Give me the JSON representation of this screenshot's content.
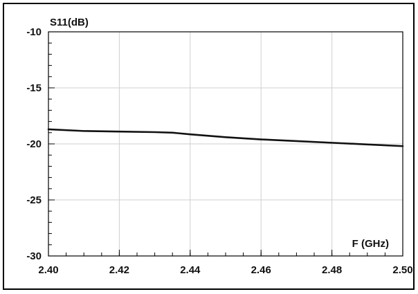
{
  "chart_data": {
    "type": "line",
    "title": "",
    "xlabel": "F (GHz)",
    "ylabel": "S11(dB)",
    "xlim": [
      2.4,
      2.5
    ],
    "ylim": [
      -30,
      -10
    ],
    "xticks": [
      2.4,
      2.42,
      2.44,
      2.46,
      2.48,
      2.5
    ],
    "xtick_labels": [
      "2.40",
      "2.42",
      "2.44",
      "2.46",
      "2.48",
      "2.50"
    ],
    "yticks": [
      -10,
      -15,
      -20,
      -25,
      -30
    ],
    "ytick_labels": [
      "-10",
      "-15",
      "-20",
      "-25",
      "-30"
    ],
    "x_minor_step": 0.005,
    "y_minor_step": 1,
    "grid": true,
    "legend": "none",
    "series": [
      {
        "x": [
          2.4,
          2.41,
          2.42,
          2.43,
          2.435,
          2.44,
          2.45,
          2.46,
          2.47,
          2.48,
          2.49,
          2.5
        ],
        "y": [
          -18.7,
          -18.85,
          -18.9,
          -18.95,
          -19.0,
          -19.15,
          -19.4,
          -19.6,
          -19.75,
          -19.9,
          -20.05,
          -20.2
        ],
        "color": "#111111"
      }
    ]
  }
}
